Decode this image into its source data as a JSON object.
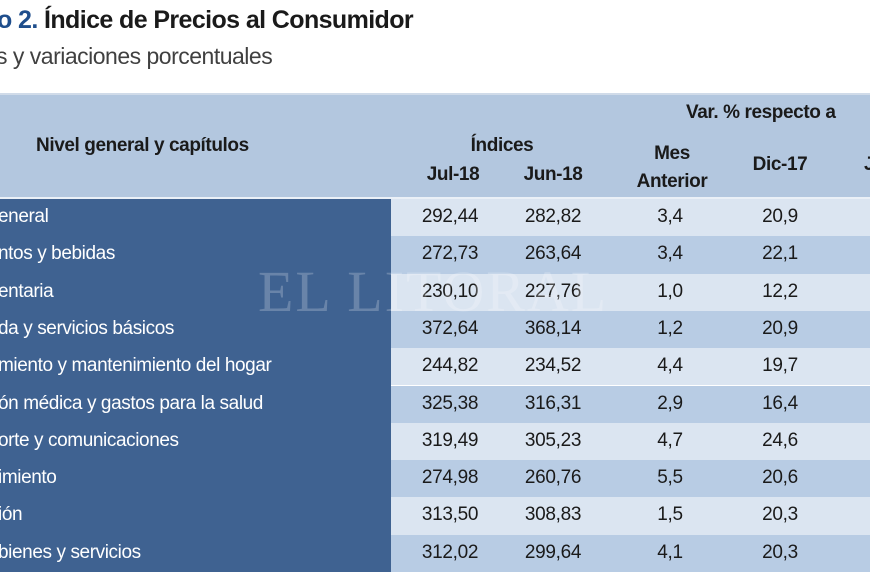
{
  "title": {
    "number": "o 2.",
    "text": "Índice de Precios al Consumidor"
  },
  "subtitle": "s y variaciones porcentuales",
  "header": {
    "label_col": "Nivel general y capítulos",
    "indices": "Índices",
    "var_group": "Var. % respecto a",
    "columns": [
      "Jul-18",
      "Jun-18",
      "Mes",
      "Anterior",
      "Dic-17",
      "J"
    ]
  },
  "watermark": "EL LITORAL",
  "rows": [
    {
      "label": "eneral",
      "jul18": "292,44",
      "jun18": "282,82",
      "mes": "3,4",
      "dic17": "20,9"
    },
    {
      "label": "ntos y bebidas",
      "jul18": "272,73",
      "jun18": "263,64",
      "mes": "3,4",
      "dic17": "22,1"
    },
    {
      "label": "entaria",
      "jul18": "230,10",
      "jun18": "227,76",
      "mes": "1,0",
      "dic17": "12,2"
    },
    {
      "label": "da y servicios básicos",
      "jul18": "372,64",
      "jun18": "368,14",
      "mes": "1,2",
      "dic17": "20,9"
    },
    {
      "label": "miento y mantenimiento del hogar",
      "jul18": "244,82",
      "jun18": "234,52",
      "mes": "4,4",
      "dic17": "19,7"
    },
    {
      "label": "ón médica y gastos para la salud",
      "jul18": "325,38",
      "jun18": "316,31",
      "mes": "2,9",
      "dic17": "16,4"
    },
    {
      "label": "orte y comunicaciones",
      "jul18": "319,49",
      "jun18": "305,23",
      "mes": "4,7",
      "dic17": "24,6"
    },
    {
      "label": "imiento",
      "jul18": "274,98",
      "jun18": "260,76",
      "mes": "5,5",
      "dic17": "20,6"
    },
    {
      "label": "ión",
      "jul18": "313,50",
      "jun18": "308,83",
      "mes": "1,5",
      "dic17": "20,3"
    },
    {
      "label": "bienes y servicios",
      "jul18": "312,02",
      "jun18": "299,64",
      "mes": "4,1",
      "dic17": "20,3"
    }
  ],
  "colors": {
    "title_accent": "#1f4e8c",
    "header_bg": "#b3c7df",
    "label_col_bg": "#3f6291",
    "row_light": "#dbe5f1",
    "row_dark": "#b8cce4"
  }
}
